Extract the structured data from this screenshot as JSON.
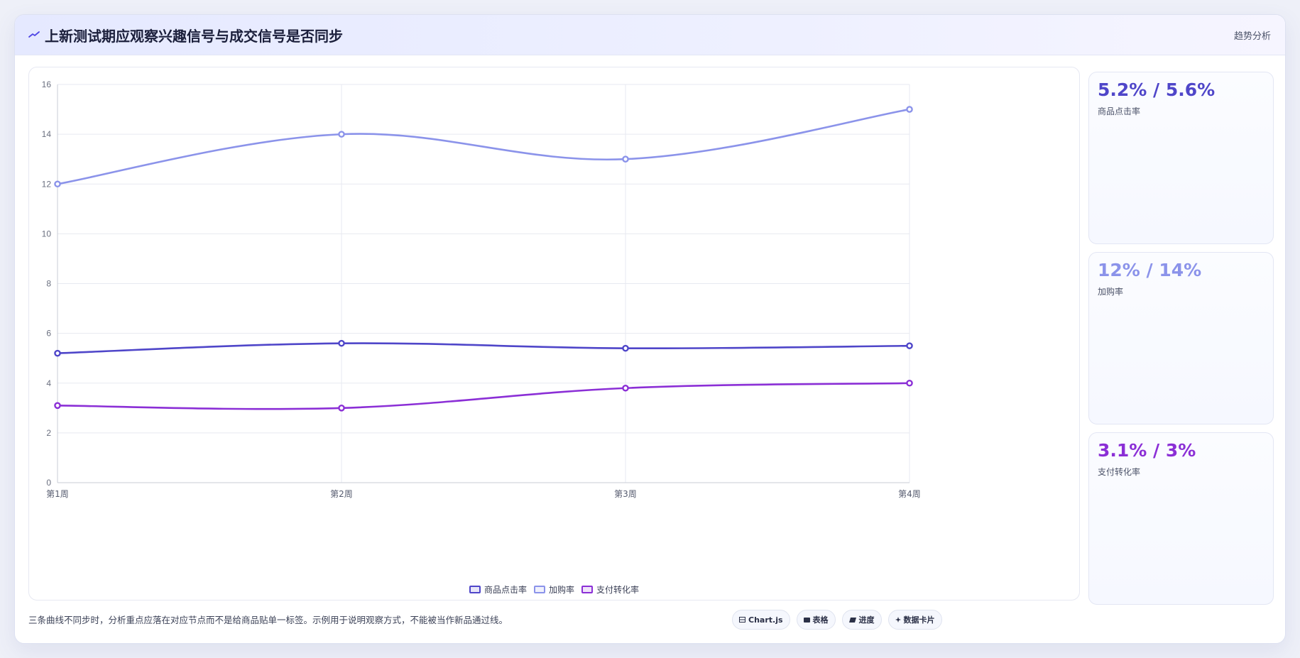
{
  "header": {
    "title": "上新测试期应观察兴趣信号与成交信号是否同步",
    "action_label": "趋势分析",
    "icon": "trend-line-icon"
  },
  "colors": {
    "series_click": "#4f46c9",
    "series_cart": "#8b93ea",
    "series_pay": "#8b2fd6",
    "accent": "#4f46e5"
  },
  "chart_data": {
    "type": "line",
    "categories": [
      "第1周",
      "第2周",
      "第3周",
      "第4周"
    ],
    "series": [
      {
        "name": "商品点击率",
        "values": [
          5.2,
          5.6,
          5.4,
          5.5
        ]
      },
      {
        "name": "加购率",
        "values": [
          12,
          14,
          13,
          15
        ]
      },
      {
        "name": "支付转化率",
        "values": [
          3.1,
          3.0,
          3.8,
          4.0
        ]
      }
    ],
    "ylim": [
      0,
      16
    ],
    "yticks": [
      0,
      2,
      4,
      6,
      8,
      10,
      12,
      14,
      16
    ],
    "title": "",
    "xlabel": "",
    "ylabel": "",
    "grid": true,
    "legend_position": "bottom-center",
    "smooth": true
  },
  "kpis": [
    {
      "value": "5.2% / 5.6%",
      "label": "商品点击率"
    },
    {
      "value": "12% / 14%",
      "label": "加购率"
    },
    {
      "value": "3.1% / 3%",
      "label": "支付转化率"
    }
  ],
  "footer": {
    "note": "三条曲线不同步时，分析重点应落在对应节点而不是给商品贴单一标签。示例用于说明观察方式，不能被当作新品通过线。"
  },
  "pills": [
    {
      "label": "Chart.js",
      "icon": "chart-icon"
    },
    {
      "label": "表格",
      "icon": "table-icon"
    },
    {
      "label": "进度",
      "icon": "progress-icon"
    },
    {
      "label": "数据卡片",
      "icon": "sparkle-icon"
    }
  ]
}
